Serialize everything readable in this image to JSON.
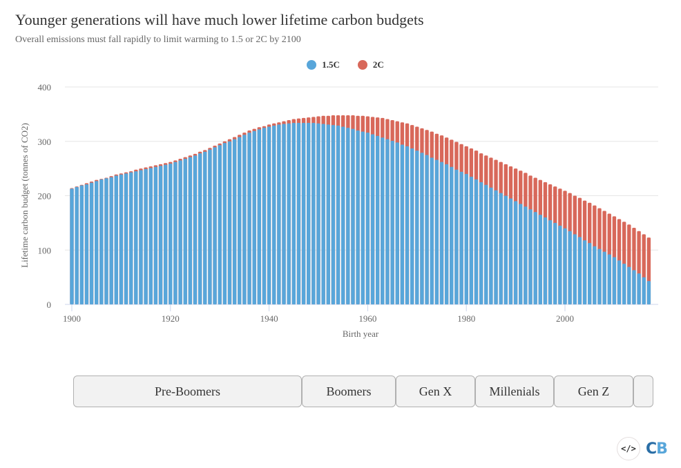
{
  "header": {
    "title": "Younger generations will have much lower lifetime carbon budgets",
    "subtitle": "Overall emissions must fall rapidly to limit warming to 1.5 or 2C by 2100"
  },
  "legend": [
    {
      "name": "1.5C",
      "color": "#58a6da"
    },
    {
      "name": "2C",
      "color": "#d8685a"
    }
  ],
  "generations": [
    {
      "label": "Pre-Boomers"
    },
    {
      "label": "Boomers"
    },
    {
      "label": "Gen X"
    },
    {
      "label": "Millenials"
    },
    {
      "label": "Gen Z"
    },
    {
      "label": ""
    }
  ],
  "footer": {
    "embed_icon": "</>",
    "logo_text_c": "C",
    "logo_text_b": "B",
    "logo_color_c": "#2a6ea6",
    "logo_color_b": "#58a6da"
  },
  "chart_data": {
    "type": "bar",
    "stacked": true,
    "title": "Younger generations will have much lower lifetime carbon budgets",
    "subtitle": "Overall emissions must fall rapidly to limit warming to 1.5 or 2C by 2100",
    "xlabel": "Birth year",
    "ylabel": "Lifetime carbon budget (tonnes of CO2)",
    "ylim": [
      0,
      400
    ],
    "yticks": [
      0,
      100,
      200,
      300,
      400
    ],
    "xticks": [
      1900,
      1920,
      1940,
      1960,
      1980,
      2000
    ],
    "xlim": [
      1900,
      2017
    ],
    "grid": true,
    "legend_position": "top-center",
    "x": [
      1900,
      1901,
      1902,
      1903,
      1904,
      1905,
      1906,
      1907,
      1908,
      1909,
      1910,
      1911,
      1912,
      1913,
      1914,
      1915,
      1916,
      1917,
      1918,
      1919,
      1920,
      1921,
      1922,
      1923,
      1924,
      1925,
      1926,
      1927,
      1928,
      1929,
      1930,
      1931,
      1932,
      1933,
      1934,
      1935,
      1936,
      1937,
      1938,
      1939,
      1940,
      1941,
      1942,
      1943,
      1944,
      1945,
      1946,
      1947,
      1948,
      1949,
      1950,
      1951,
      1952,
      1953,
      1954,
      1955,
      1956,
      1957,
      1958,
      1959,
      1960,
      1961,
      1962,
      1963,
      1964,
      1965,
      1966,
      1967,
      1968,
      1969,
      1970,
      1971,
      1972,
      1973,
      1974,
      1975,
      1976,
      1977,
      1978,
      1979,
      1980,
      1981,
      1982,
      1983,
      1984,
      1985,
      1986,
      1987,
      1988,
      1989,
      1990,
      1991,
      1992,
      1993,
      1994,
      1995,
      1996,
      1997,
      1998,
      1999,
      2000,
      2001,
      2002,
      2003,
      2004,
      2005,
      2006,
      2007,
      2008,
      2009,
      2010,
      2011,
      2012,
      2013,
      2014,
      2015,
      2016,
      2017
    ],
    "series": [
      {
        "name": "1.5C",
        "color": "#58a6da",
        "values": [
          213,
          216,
          219,
          221,
          224,
          227,
          230,
          232,
          234,
          237,
          239,
          241,
          243,
          245,
          247,
          249,
          251,
          253,
          255,
          257,
          259,
          262,
          265,
          268,
          271,
          274,
          278,
          281,
          285,
          289,
          293,
          297,
          300,
          304,
          308,
          312,
          316,
          319,
          322,
          325,
          327,
          329,
          331,
          332,
          333,
          334,
          334,
          334,
          334,
          334,
          333,
          332,
          331,
          330,
          329,
          327,
          325,
          323,
          320,
          318,
          316,
          313,
          310,
          307,
          304,
          301,
          298,
          294,
          291,
          287,
          283,
          279,
          275,
          270,
          266,
          262,
          258,
          253,
          248,
          244,
          240,
          235,
          230,
          225,
          220,
          215,
          210,
          205,
          200,
          195,
          190,
          185,
          180,
          175,
          170,
          165,
          160,
          155,
          150,
          145,
          140,
          135,
          129,
          124,
          118,
          113,
          107,
          102,
          97,
          92,
          87,
          81,
          75,
          69,
          63,
          57,
          50,
          43
        ]
      },
      {
        "name": "2C",
        "color": "#d8685a",
        "values": [
          214,
          217,
          220,
          223,
          226,
          229,
          231,
          233,
          236,
          239,
          241,
          243,
          245,
          248,
          250,
          252,
          254,
          256,
          258,
          260,
          262,
          265,
          268,
          271,
          274,
          277,
          281,
          284,
          288,
          292,
          296,
          300,
          304,
          308,
          312,
          316,
          320,
          323,
          326,
          328,
          331,
          333,
          335,
          337,
          339,
          341,
          342,
          343,
          344,
          345,
          346,
          347,
          347,
          348,
          348,
          348,
          348,
          348,
          347,
          347,
          346,
          345,
          344,
          343,
          341,
          339,
          337,
          335,
          333,
          330,
          327,
          324,
          321,
          318,
          314,
          311,
          307,
          303,
          299,
          295,
          291,
          287,
          283,
          278,
          274,
          270,
          266,
          262,
          258,
          254,
          250,
          246,
          242,
          237,
          233,
          229,
          225,
          221,
          217,
          213,
          209,
          205,
          200,
          196,
          191,
          187,
          182,
          177,
          172,
          167,
          162,
          157,
          152,
          147,
          141,
          135,
          129,
          123
        ]
      }
    ]
  }
}
